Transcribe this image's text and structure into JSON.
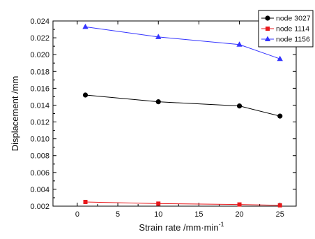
{
  "chart_data": {
    "type": "line",
    "xlabel": "Strain rate /mm·min",
    "xlabel_superscript": "-1",
    "ylabel": "Displacement /mm",
    "xlim": [
      -3,
      27
    ],
    "ylim": [
      0.002,
      0.024
    ],
    "x_ticks": [
      "0",
      "5",
      "10",
      "15",
      "20",
      "25"
    ],
    "y_ticks": [
      "0.002",
      "0.004",
      "0.006",
      "0.008",
      "0.010",
      "0.012",
      "0.014",
      "0.016",
      "0.018",
      "0.020",
      "0.022",
      "0.024"
    ],
    "legend_position": "top-right",
    "grid": false,
    "series": [
      {
        "name": "node 3027",
        "color": "#000000",
        "marker": "circle",
        "x": [
          1,
          10,
          20,
          25
        ],
        "values": [
          0.0152,
          0.0144,
          0.0139,
          0.0127
        ]
      },
      {
        "name": "node 1114",
        "color": "#e8191c",
        "marker": "square",
        "x": [
          1,
          10,
          20,
          25
        ],
        "values": [
          0.0025,
          0.0023,
          0.0022,
          0.0021
        ]
      },
      {
        "name": "node 1156",
        "color": "#3333ff",
        "marker": "triangle",
        "x": [
          1,
          10,
          20,
          25
        ],
        "values": [
          0.0233,
          0.0221,
          0.0212,
          0.0195
        ]
      }
    ]
  }
}
